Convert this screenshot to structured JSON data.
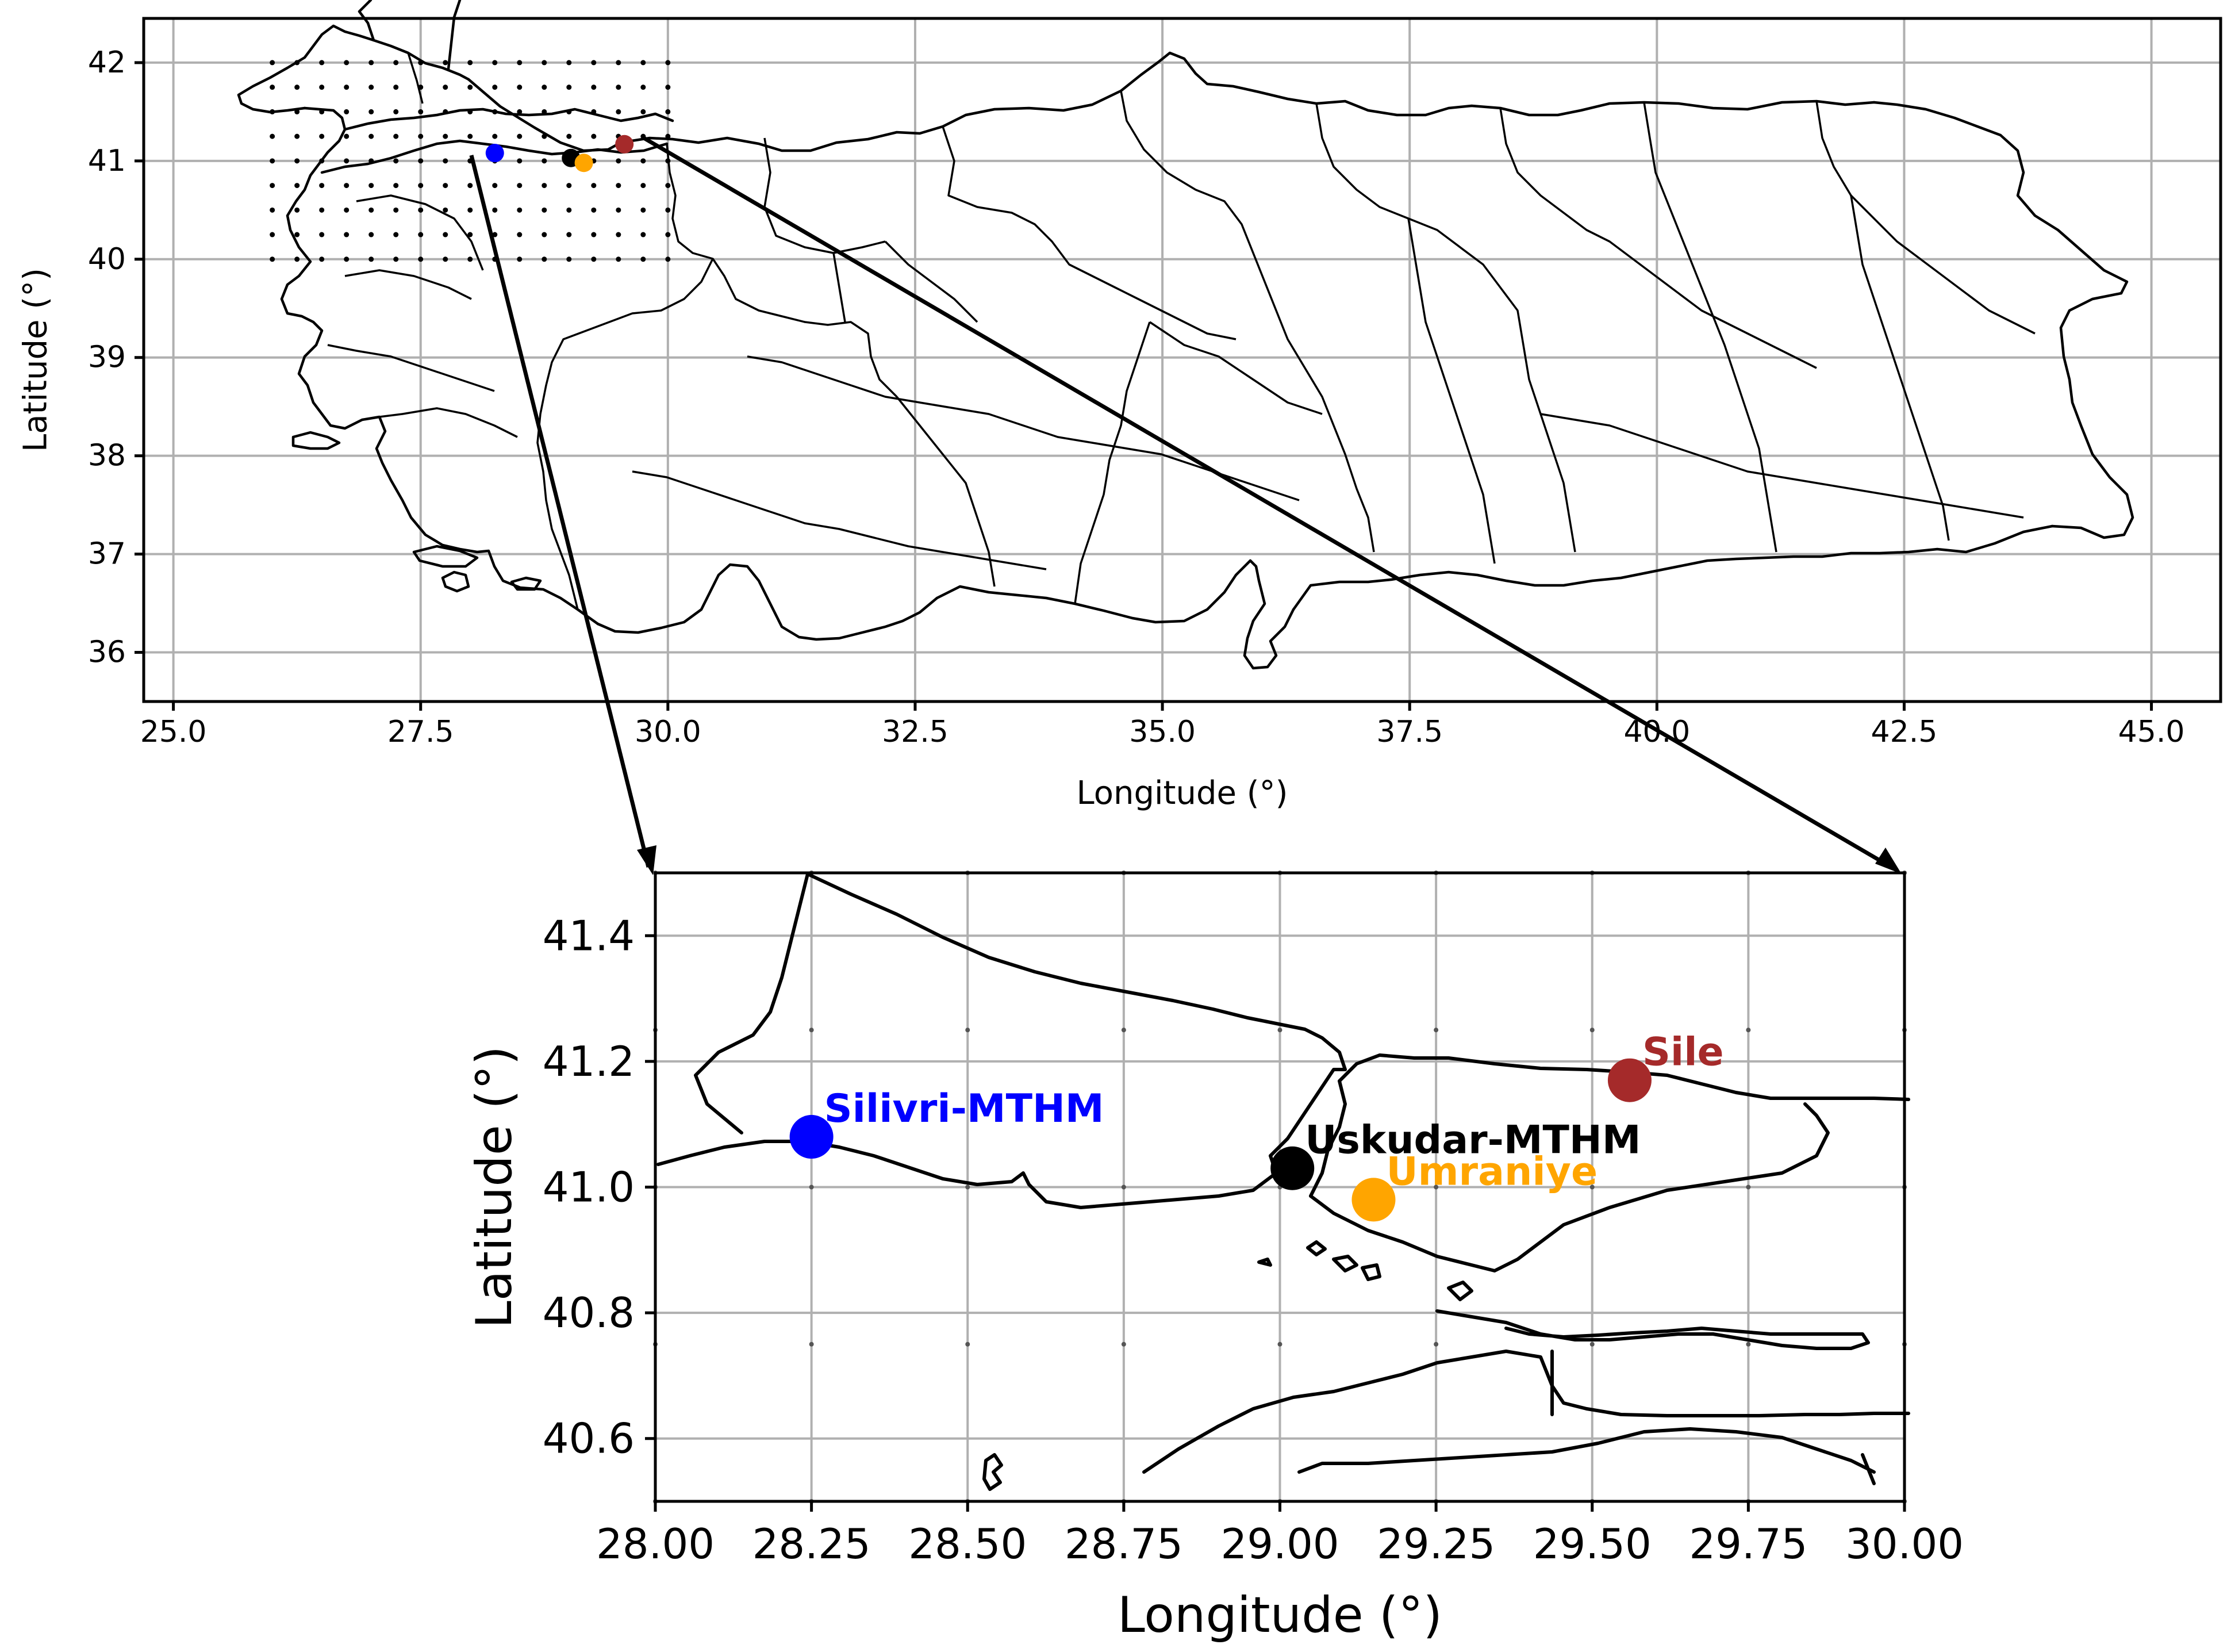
{
  "chart_data": [
    {
      "type": "map",
      "xlabel": "Longitude (°)",
      "ylabel": "Latitude (°)",
      "xlim": [
        24.7,
        45.7
      ],
      "ylim": [
        35.5,
        42.45
      ],
      "xticks": [
        "25.0",
        "27.5",
        "30.0",
        "32.5",
        "35.0",
        "37.5",
        "40.0",
        "42.5",
        "45.0"
      ],
      "yticks": [
        "36",
        "37",
        "38",
        "39",
        "40",
        "41",
        "42"
      ],
      "grid": true,
      "grid_points": {
        "lon_range": [
          26.0,
          30.0
        ],
        "lat_range": [
          40.0,
          42.0
        ],
        "step": 0.25
      },
      "stations": [
        {
          "lon": 28.25,
          "lat": 41.08,
          "color": "#0000ff"
        },
        {
          "lon": 29.02,
          "lat": 41.03,
          "color": "#000000"
        },
        {
          "lon": 29.15,
          "lat": 40.98,
          "color": "#ffa500"
        },
        {
          "lon": 29.56,
          "lat": 41.17,
          "color": "#a52a2a"
        }
      ]
    },
    {
      "type": "map",
      "xlabel": "Longitude (°)",
      "ylabel": "Latitude (°)",
      "xlim": [
        28.0,
        30.0
      ],
      "ylim": [
        40.5,
        41.5
      ],
      "xticks": [
        "28.00",
        "28.25",
        "28.50",
        "28.75",
        "29.00",
        "29.25",
        "29.50",
        "29.75",
        "30.00"
      ],
      "yticks": [
        "40.6",
        "40.8",
        "41.0",
        "41.2",
        "41.4"
      ],
      "grid": true,
      "stations": [
        {
          "name": "Silivri-MTHM",
          "lon": 28.25,
          "lat": 41.08,
          "color": "#0000ff"
        },
        {
          "name": "Uskudar-MTHM",
          "lon": 29.02,
          "lat": 41.03,
          "color": "#000000"
        },
        {
          "name": "Umraniye",
          "lon": 29.15,
          "lat": 40.98,
          "color": "#ffa500"
        },
        {
          "name": "Sile",
          "lon": 29.56,
          "lat": 41.17,
          "color": "#a52a2a"
        }
      ]
    }
  ]
}
